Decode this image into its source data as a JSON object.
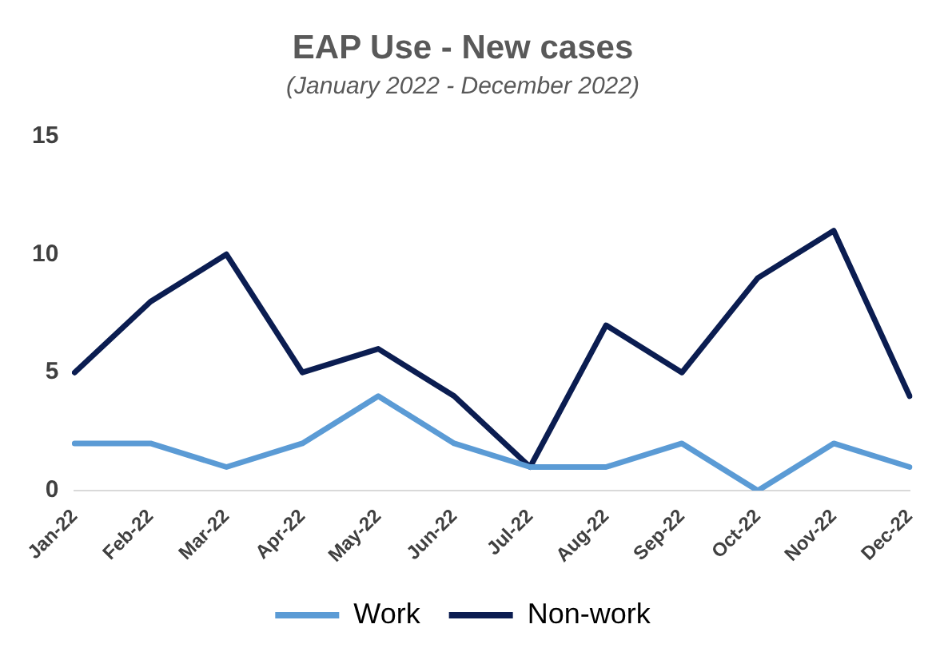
{
  "chart_data": {
    "type": "line",
    "title": "EAP Use - New cases",
    "subtitle": "(January 2022 - December 2022)",
    "categories": [
      "Jan-22",
      "Feb-22",
      "Mar-22",
      "Apr-22",
      "May-22",
      "Jun-22",
      "Jul-22",
      "Aug-22",
      "Sep-22",
      "Oct-22",
      "Nov-22",
      "Dec-22"
    ],
    "series": [
      {
        "name": "Work",
        "color": "#5b9bd5",
        "values": [
          2,
          2,
          1,
          2,
          4,
          2,
          1,
          1,
          2,
          0,
          2,
          1
        ]
      },
      {
        "name": "Non-work",
        "color": "#0b1d51",
        "values": [
          5,
          8,
          10,
          5,
          6,
          4,
          1,
          7,
          5,
          9,
          11,
          4
        ]
      }
    ],
    "ylim": [
      0,
      15
    ],
    "yticks": [
      0,
      5,
      10,
      15
    ],
    "grid": false,
    "legend": "bottom",
    "marker": "none",
    "line_style": "solid"
  }
}
